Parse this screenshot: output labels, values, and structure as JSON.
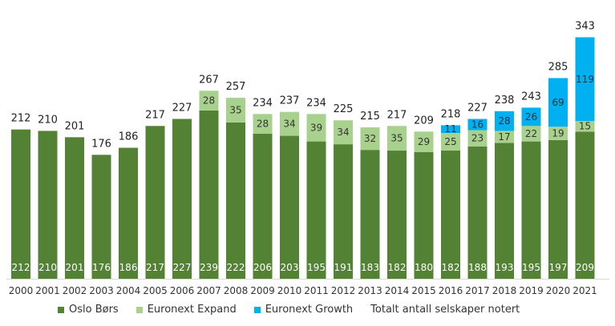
{
  "chart_data": {
    "type": "bar",
    "stacked": true,
    "categories": [
      "2000",
      "2001",
      "2002",
      "2003",
      "2004",
      "2005",
      "2006",
      "2007",
      "2008",
      "2009",
      "2010",
      "2011",
      "2012",
      "2013",
      "2014",
      "2015",
      "2016",
      "2017",
      "2018",
      "2019",
      "2020",
      "2021"
    ],
    "series": [
      {
        "name": "Oslo Børs",
        "color": "#548235",
        "label_color": "#ffffff",
        "values": [
          212,
          210,
          201,
          176,
          186,
          217,
          227,
          239,
          222,
          206,
          203,
          195,
          191,
          183,
          182,
          180,
          182,
          188,
          193,
          195,
          197,
          209
        ]
      },
      {
        "name": "Euronext Expand",
        "color": "#a9d18e",
        "label_color": "#333333",
        "values": [
          0,
          0,
          0,
          0,
          0,
          0,
          0,
          28,
          35,
          28,
          34,
          39,
          34,
          32,
          35,
          29,
          25,
          23,
          17,
          22,
          19,
          15
        ]
      },
      {
        "name": "Euronext Growth",
        "color": "#00b0f0",
        "label_color": "#333333",
        "values": [
          0,
          0,
          0,
          0,
          0,
          0,
          0,
          0,
          0,
          0,
          0,
          0,
          0,
          0,
          0,
          0,
          11,
          16,
          28,
          26,
          69,
          119
        ]
      }
    ],
    "totals_series": {
      "name": "Totalt antall selskaper notert",
      "values": [
        212,
        210,
        201,
        176,
        186,
        217,
        227,
        267,
        257,
        234,
        237,
        234,
        225,
        215,
        217,
        209,
        218,
        227,
        238,
        243,
        285,
        343
      ]
    },
    "ylim": [
      0,
      360
    ],
    "grid": false,
    "legend_position": "bottom",
    "title": "",
    "xlabel": "",
    "ylabel": ""
  },
  "legend": [
    {
      "label": "Oslo Børs",
      "color": "#548235"
    },
    {
      "label": "Euronext Expand",
      "color": "#a9d18e"
    },
    {
      "label": "Euronext Growth",
      "color": "#00b0f0"
    },
    {
      "label": "Totalt antall selskaper notert",
      "color": ""
    }
  ]
}
